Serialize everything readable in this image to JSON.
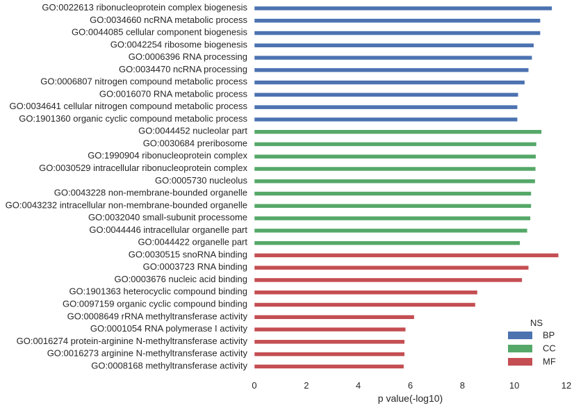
{
  "chart_data": {
    "type": "bar",
    "orientation": "horizontal",
    "xlabel": "p value(-log10)",
    "xlim": [
      0,
      12
    ],
    "xticks": [
      "0",
      "2",
      "4",
      "6",
      "8",
      "10",
      "12"
    ],
    "grid": false,
    "legend_placement": "bottom-right",
    "legend_title": "NS",
    "series": [
      {
        "name": "BP",
        "color": "#4c72b0",
        "categories": [
          "GO:0022613 ribonucleoprotein complex biogenesis",
          "GO:0034660 ncRNA metabolic process",
          "GO:0044085 cellular component biogenesis",
          "GO:0042254 ribosome biogenesis",
          "GO:0006396 RNA processing",
          "GO:0034470 ncRNA processing",
          "GO:0006807 nitrogen compound metabolic process",
          "GO:0016070 RNA metabolic process",
          "GO:0034641 cellular nitrogen compound metabolic process",
          "GO:1901360 organic cyclic compound metabolic process"
        ],
        "values": [
          11.45,
          11.0,
          11.0,
          10.75,
          10.68,
          10.55,
          10.4,
          10.15,
          10.12,
          10.12
        ]
      },
      {
        "name": "CC",
        "color": "#55a868",
        "categories": [
          "GO:0044452 nucleolar part",
          "GO:0030684 preribosome",
          "GO:1990904 ribonucleoprotein complex",
          "GO:0030529 intracellular ribonucleoprotein complex",
          "GO:0005730 nucleolus",
          "GO:0043228 non-membrane-bounded organelle",
          "GO:0043232 intracellular non-membrane-bounded organelle",
          "GO:0032040 small-subunit processome",
          "GO:0044446 intracellular organelle part",
          "GO:0044422 organelle part"
        ],
        "values": [
          11.05,
          10.85,
          10.83,
          10.82,
          10.8,
          10.65,
          10.65,
          10.62,
          10.5,
          10.22
        ]
      },
      {
        "name": "MF",
        "color": "#c44e52",
        "categories": [
          "GO:0030515 snoRNA binding",
          "GO:0003723 RNA binding",
          "GO:0003676 nucleic acid binding",
          "GO:1901363 heterocyclic compound binding",
          "GO:0097159 organic cyclic compound binding",
          "GO:0008649 rRNA methyltransferase activity",
          "GO:0001054 RNA polymerase I activity",
          "GO:0016274 protein-arginine N-methyltransferase activity",
          "GO:0016273 arginine N-methyltransferase activity",
          "GO:0008168 methyltransferase activity"
        ],
        "values": [
          11.7,
          10.55,
          10.3,
          8.58,
          8.5,
          6.15,
          5.82,
          5.78,
          5.78,
          5.75
        ]
      }
    ]
  }
}
